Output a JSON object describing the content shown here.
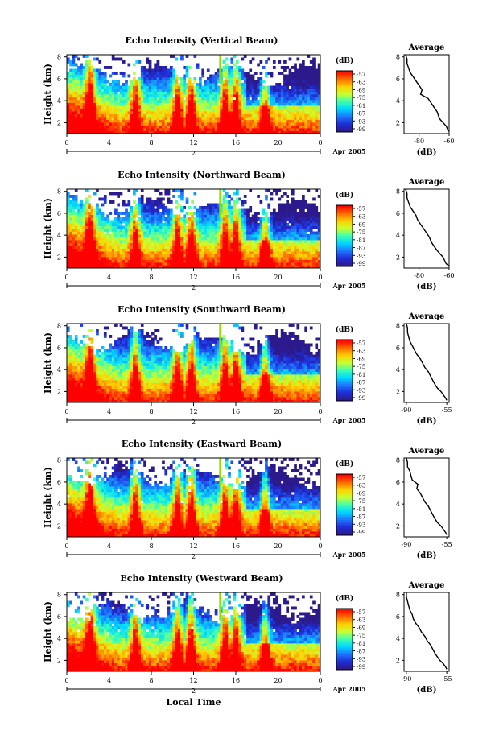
{
  "figure": {
    "xlabel": "Local Time",
    "date_label": "Apr 2005",
    "day_label": "2",
    "colorbar_unit": "(dB)",
    "colorbar_ticks": [
      "-57",
      "-63",
      "-69",
      "-75",
      "-81",
      "-87",
      "-93",
      "-99"
    ],
    "colormap": [
      "#ff0000",
      "#ff6a00",
      "#ffd000",
      "#c8ff30",
      "#40ffb0",
      "#00d8ff",
      "#1e78ff",
      "#1e2ed8",
      "#2c1a8c"
    ]
  },
  "chart_data": [
    {
      "type": "heatmap",
      "title": "Echo Intensity (Vertical Beam)",
      "ylabel": "Height (km)",
      "xlim": [
        0,
        24
      ],
      "ylim": [
        1,
        8.2
      ],
      "xticks": [
        "0",
        "4",
        "8",
        "12",
        "16",
        "20",
        "0"
      ],
      "yticks": [
        "2",
        "4",
        "6",
        "8"
      ],
      "colorbar": {
        "label": "(dB)",
        "min": -99,
        "max": -57
      },
      "average_profile": {
        "title": "Average",
        "xlabel": "(dB)",
        "xlim": [
          -90,
          -60
        ],
        "xticks": [
          "-80",
          "-60"
        ],
        "yticks": [
          "2",
          "4",
          "6",
          "8"
        ],
        "x": [
          -89,
          -88,
          -88,
          -87,
          -86,
          -84,
          -82,
          -80,
          -78,
          -79,
          -74,
          -72,
          -70,
          -68,
          -67,
          -66,
          -64,
          -62,
          -61,
          -60
        ],
        "y": [
          8.2,
          7.8,
          7.4,
          7.0,
          6.6,
          6.2,
          5.8,
          5.4,
          5.0,
          4.6,
          4.2,
          3.8,
          3.4,
          3.0,
          2.6,
          2.3,
          2.0,
          1.7,
          1.4,
          1.2
        ]
      }
    },
    {
      "type": "heatmap",
      "title": "Echo Intensity (Northward Beam)",
      "ylabel": "Height (km)",
      "xlim": [
        0,
        24
      ],
      "ylim": [
        1,
        8.2
      ],
      "xticks": [
        "0",
        "4",
        "8",
        "12",
        "16",
        "20",
        "0"
      ],
      "yticks": [
        "2",
        "4",
        "6",
        "8"
      ],
      "colorbar": {
        "label": "(dB)",
        "min": -99,
        "max": -57
      },
      "average_profile": {
        "title": "Average",
        "xlabel": "(dB)",
        "xlim": [
          -90,
          -60
        ],
        "xticks": [
          "-80",
          "-60"
        ],
        "yticks": [
          "2",
          "4",
          "6",
          "8"
        ],
        "x": [
          -89,
          -88,
          -88,
          -87,
          -86,
          -84,
          -82,
          -81,
          -79,
          -77,
          -75,
          -73,
          -72,
          -70,
          -68,
          -66,
          -64,
          -63,
          -62,
          -60
        ],
        "y": [
          8.2,
          7.8,
          7.4,
          7.0,
          6.6,
          6.2,
          5.8,
          5.4,
          5.0,
          4.6,
          4.2,
          3.8,
          3.4,
          3.0,
          2.6,
          2.3,
          2.0,
          1.7,
          1.4,
          1.2
        ]
      }
    },
    {
      "type": "heatmap",
      "title": "Echo Intensity (Southward Beam)",
      "ylabel": "Height (km)",
      "xlim": [
        0,
        24
      ],
      "ylim": [
        1,
        8.2
      ],
      "xticks": [
        "0",
        "4",
        "8",
        "12",
        "16",
        "20",
        "0"
      ],
      "yticks": [
        "2",
        "4",
        "6",
        "8"
      ],
      "colorbar": {
        "label": "(dB)",
        "min": -99,
        "max": -57
      },
      "average_profile": {
        "title": "Average",
        "xlabel": "(dB)",
        "xlim": [
          -92,
          -53
        ],
        "xticks": [
          "-90",
          "-55"
        ],
        "yticks": [
          "2",
          "4",
          "6",
          "8"
        ],
        "x": [
          -90,
          -89,
          -89,
          -88,
          -87,
          -85,
          -83,
          -81,
          -78,
          -76,
          -74,
          -71,
          -69,
          -67,
          -65,
          -63,
          -60,
          -58,
          -56,
          -55
        ],
        "y": [
          8.2,
          7.8,
          7.4,
          7.0,
          6.6,
          6.2,
          5.8,
          5.4,
          5.0,
          4.6,
          4.2,
          3.8,
          3.4,
          3.0,
          2.6,
          2.3,
          2.0,
          1.7,
          1.4,
          1.2
        ]
      }
    },
    {
      "type": "heatmap",
      "title": "Echo Intensity (Eastward Beam)",
      "ylabel": "Height (km)",
      "xlim": [
        0,
        24
      ],
      "ylim": [
        1,
        8.2
      ],
      "xticks": [
        "0",
        "4",
        "8",
        "12",
        "16",
        "20",
        "0"
      ],
      "yticks": [
        "2",
        "4",
        "6",
        "8"
      ],
      "colorbar": {
        "label": "(dB)",
        "min": -99,
        "max": -57
      },
      "average_profile": {
        "title": "Average",
        "xlabel": "(dB)",
        "xlim": [
          -92,
          -53
        ],
        "xticks": [
          "-90",
          "-55"
        ],
        "yticks": [
          "2",
          "4",
          "6",
          "8"
        ],
        "x": [
          -90,
          -89,
          -89,
          -87,
          -86,
          -85,
          -80,
          -81,
          -78,
          -76,
          -74,
          -71,
          -69,
          -67,
          -65,
          -63,
          -60,
          -58,
          -56,
          -55
        ],
        "y": [
          8.2,
          7.8,
          7.4,
          7.0,
          6.6,
          6.2,
          5.8,
          5.4,
          5.0,
          4.6,
          4.2,
          3.8,
          3.4,
          3.0,
          2.6,
          2.3,
          2.0,
          1.7,
          1.4,
          1.2
        ]
      }
    },
    {
      "type": "heatmap",
      "title": "Echo Intensity (Westward Beam)",
      "ylabel": "Height (km)",
      "xlim": [
        0,
        24
      ],
      "ylim": [
        1,
        8.2
      ],
      "xticks": [
        "0",
        "4",
        "8",
        "12",
        "16",
        "20",
        "0"
      ],
      "yticks": [
        "2",
        "4",
        "6",
        "8"
      ],
      "colorbar": {
        "label": "(dB)",
        "min": -99,
        "max": -57
      },
      "average_profile": {
        "title": "Average",
        "xlabel": "(dB)",
        "xlim": [
          -92,
          -53
        ],
        "xticks": [
          "-90",
          "-55"
        ],
        "yticks": [
          "2",
          "4",
          "6",
          "8"
        ],
        "x": [
          -90,
          -90,
          -89,
          -88,
          -87,
          -85,
          -84,
          -82,
          -79,
          -77,
          -74,
          -72,
          -69,
          -67,
          -65,
          -63,
          -61,
          -58,
          -56,
          -55
        ],
        "y": [
          8.2,
          7.8,
          7.4,
          7.0,
          6.6,
          6.2,
          5.8,
          5.4,
          5.0,
          4.6,
          4.2,
          3.8,
          3.4,
          3.0,
          2.6,
          2.3,
          2.0,
          1.7,
          1.4,
          1.2
        ]
      }
    }
  ]
}
